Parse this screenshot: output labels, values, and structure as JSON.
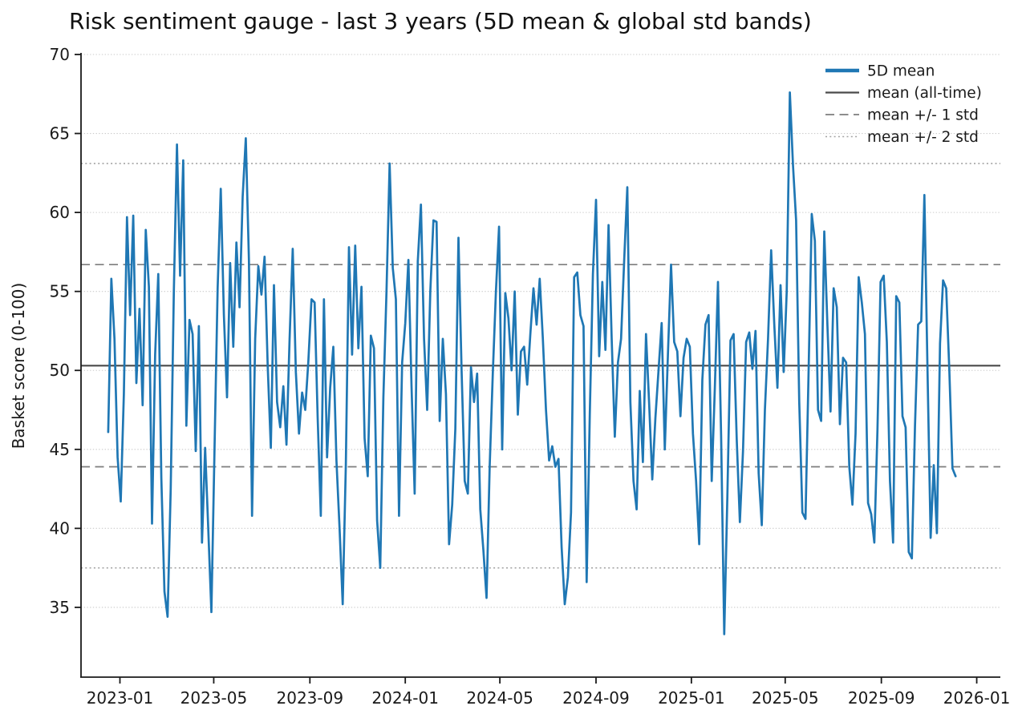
{
  "title": "Risk sentiment gauge - last 3 years (5D mean & global std bands)",
  "chart_data": {
    "type": "line",
    "title": "Risk sentiment gauge - last 3 years (5D mean & global std bands)",
    "xlabel": "",
    "ylabel": "Basket score (0-100)",
    "ylim": [
      30.6,
      70
    ],
    "yticks": [
      35,
      40,
      45,
      50,
      55,
      60,
      65,
      70
    ],
    "xticks": [
      "2023-01",
      "2023-05",
      "2023-09",
      "2024-01",
      "2024-05",
      "2024-09",
      "2025-01",
      "2025-05",
      "2025-09",
      "2026-01"
    ],
    "grid": "horizontal dotted gridline at every y tick",
    "legend_position": "upper right, no frame",
    "stats": {
      "mean_all_time": 50.3,
      "std": 6.4,
      "mean_plus_1std": 56.7,
      "mean_minus_1std": 43.9,
      "mean_plus_2std": 63.1,
      "mean_minus_2std": 37.5
    },
    "legend": [
      {
        "label": "5D mean",
        "style": "solid-thick",
        "color": "#1f77b4"
      },
      {
        "label": "mean (all-time)",
        "style": "solid",
        "color": "#4a4a4a"
      },
      {
        "label": "mean +/- 1 std",
        "style": "dashed",
        "color": "#7d7d7d"
      },
      {
        "label": "mean +/- 2 std",
        "style": "dotted",
        "color": "#a3a3a3"
      }
    ],
    "reference_lines": [
      {
        "name": "mean (all-time)",
        "value": 50.3,
        "style": "solid",
        "color": "#4a4a4a"
      },
      {
        "name": "mean + 1 std",
        "value": 56.7,
        "style": "dashed",
        "color": "#7d7d7d"
      },
      {
        "name": "mean - 1 std",
        "value": 43.9,
        "style": "dashed",
        "color": "#7d7d7d"
      },
      {
        "name": "mean + 2 std",
        "value": 63.1,
        "style": "dotted",
        "color": "#a3a3a3"
      },
      {
        "name": "mean - 2 std",
        "value": 37.5,
        "style": "dotted",
        "color": "#a3a3a3"
      }
    ],
    "series": [
      {
        "name": "5D mean",
        "color": "#1f77b4",
        "x_start": "2022-12-17",
        "x_step_days": 4,
        "x_end_approx": "2025-12-05",
        "values": [
          46.1,
          55.8,
          52.0,
          44.5,
          41.7,
          48.5,
          59.7,
          53.5,
          59.8,
          49.2,
          53.9,
          47.8,
          58.9,
          55.3,
          40.3,
          51.0,
          56.1,
          43.2,
          36.0,
          34.4,
          42.5,
          55.0,
          64.3,
          56.0,
          63.3,
          46.5,
          53.2,
          52.3,
          44.9,
          52.8,
          39.1,
          45.1,
          40.0,
          34.7,
          45.0,
          55.2,
          61.5,
          53.5,
          48.3,
          56.8,
          51.5,
          58.1,
          54.0,
          61.0,
          64.7,
          57.0,
          40.8,
          52.0,
          56.6,
          54.8,
          57.2,
          50.3,
          45.1,
          55.4,
          48.0,
          46.4,
          49.0,
          45.3,
          52.0,
          57.7,
          49.9,
          46.0,
          48.6,
          47.5,
          50.6,
          54.5,
          54.3,
          47.0,
          40.8,
          54.5,
          44.5,
          48.9,
          51.5,
          44.3,
          40.0,
          35.2,
          44.0,
          57.8,
          51.0,
          57.9,
          51.4,
          55.3,
          45.7,
          43.3,
          52.2,
          51.4,
          40.5,
          37.5,
          48.3,
          55.0,
          63.1,
          56.5,
          54.5,
          40.8,
          50.5,
          53.0,
          57.0,
          49.0,
          42.2,
          56.9,
          60.5,
          52.0,
          47.5,
          55.0,
          59.5,
          59.4,
          46.8,
          52.0,
          48.5,
          39.0,
          41.5,
          46.3,
          58.4,
          50.0,
          43.0,
          42.2,
          50.2,
          48.0,
          49.8,
          41.2,
          38.6,
          35.6,
          43.9,
          49.8,
          55.0,
          59.1,
          45.0,
          54.9,
          53.3,
          50.0,
          55.0,
          47.2,
          51.2,
          51.5,
          49.1,
          52.3,
          55.2,
          52.9,
          55.8,
          52.0,
          47.5,
          44.3,
          45.2,
          43.9,
          44.4,
          38.8,
          35.2,
          36.9,
          41.0,
          55.9,
          56.2,
          53.5,
          52.8,
          36.6,
          47.2,
          56.1,
          60.8,
          50.9,
          55.6,
          51.3,
          59.2,
          52.0,
          45.8,
          50.5,
          52.0,
          57.0,
          61.6,
          48.0,
          43.0,
          41.2,
          48.7,
          44.2,
          52.3,
          47.9,
          43.1,
          47.0,
          50.0,
          53.0,
          45.0,
          51.0,
          56.7,
          51.8,
          51.2,
          47.1,
          50.8,
          52.0,
          51.5,
          46.0,
          43.0,
          39.0,
          49.4,
          52.9,
          53.5,
          43.0,
          48.9,
          55.6,
          45.9,
          33.3,
          42.0,
          51.9,
          52.3,
          45.6,
          40.4,
          44.9,
          51.8,
          52.4,
          50.1,
          52.5,
          43.5,
          40.2,
          47.5,
          52.0,
          57.6,
          52.9,
          48.9,
          55.4,
          49.9,
          55.0,
          67.6,
          63.0,
          59.5,
          48.0,
          41.0,
          40.6,
          50.0,
          59.9,
          58.2,
          47.5,
          46.8,
          58.8,
          52.9,
          47.4,
          55.2,
          54.0,
          46.6,
          50.8,
          50.5,
          43.9,
          41.5,
          46.0,
          55.9,
          54.3,
          52.3,
          41.6,
          40.9,
          39.1,
          46.2,
          55.6,
          56.0,
          51.8,
          43.0,
          39.1,
          54.7,
          54.3,
          47.1,
          46.4,
          38.5,
          38.1,
          46.5,
          52.9,
          53.1,
          61.1,
          50.0,
          39.4,
          44.0,
          39.7,
          51.7,
          55.7,
          55.2,
          50.0,
          43.8,
          43.3
        ]
      }
    ]
  },
  "layout_colors": {
    "series_blue": "#1f77b4",
    "mean_line": "#4a4a4a",
    "std1_dashed": "#7d7d7d",
    "std2_dotted": "#a3a3a3",
    "grid_dotted": "#cbcbcb",
    "axis": "#1a1a1a"
  }
}
